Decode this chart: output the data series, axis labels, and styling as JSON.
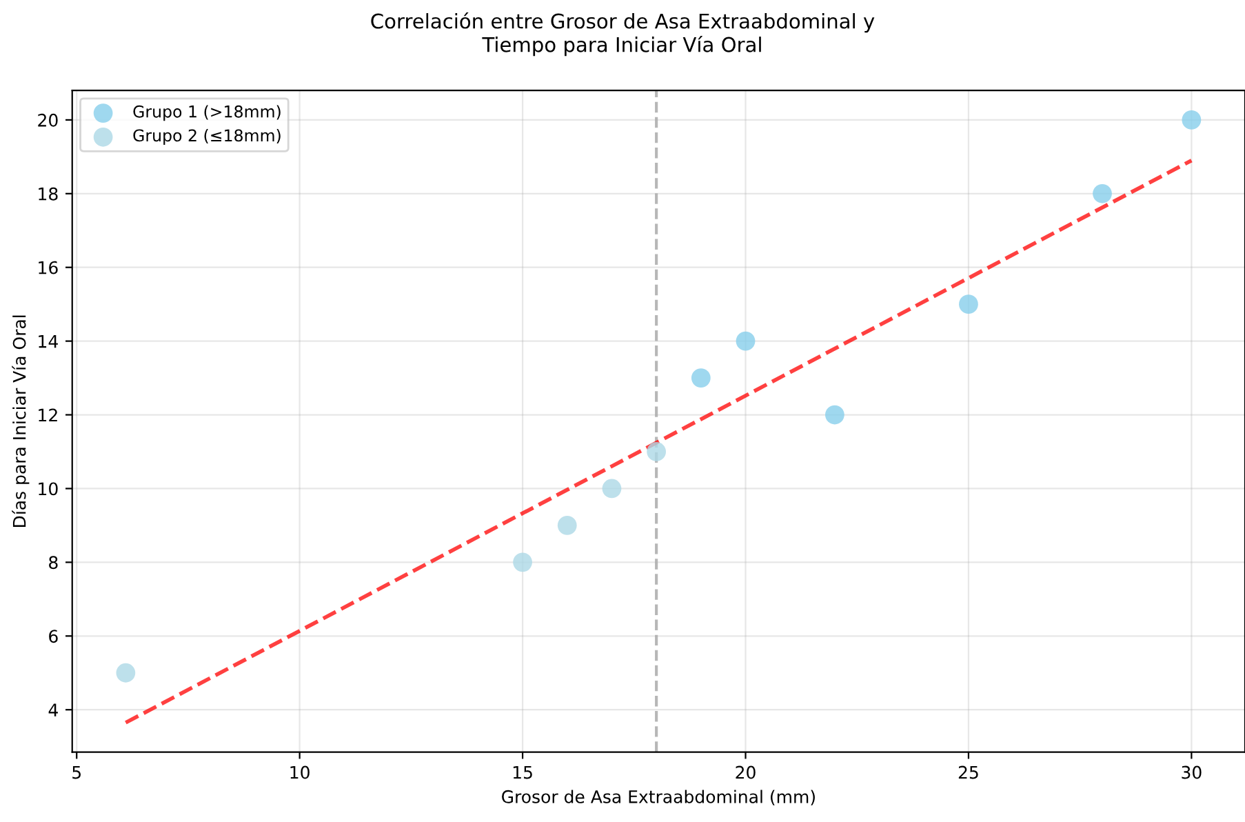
{
  "chart_data": {
    "type": "scatter",
    "title": "Correlación entre Grosor de Asa Extraabdominal y\nTiempo para Iniciar Vía Oral",
    "xlabel": "Grosor de Asa Extraabdominal (mm)",
    "ylabel": "Días para Iniciar Vía Oral",
    "series": [
      {
        "name": "Grupo 1 (>18mm)",
        "color": "#87ceeb",
        "x": [
          19,
          20,
          22,
          25,
          28,
          30
        ],
        "values": [
          13,
          14,
          12,
          15,
          18,
          20
        ]
      },
      {
        "name": "Grupo 2 (≤18mm)",
        "color": "#add8e6",
        "x": [
          6.1,
          15,
          16,
          17,
          18
        ],
        "values": [
          5,
          8,
          9,
          10,
          11
        ]
      },
      {
        "type": "line",
        "color": "#ff0000",
        "line_style": "dashed",
        "marker": "none",
        "x": [
          6.1,
          30
        ],
        "values": [
          3.65,
          18.9
        ]
      }
    ],
    "ref_lines": [
      {
        "axis": "x",
        "value": 18,
        "color": "#999999",
        "line_style": "dashed"
      }
    ],
    "xlim": [
      4.9,
      31.2
    ],
    "ylim": [
      2.85,
      20.8
    ],
    "xticks": [
      5,
      10,
      15,
      20,
      25,
      30
    ],
    "yticks": [
      4,
      6,
      8,
      10,
      12,
      14,
      16,
      18,
      20
    ],
    "grid": true,
    "legend": "top left",
    "marker": "circle"
  }
}
